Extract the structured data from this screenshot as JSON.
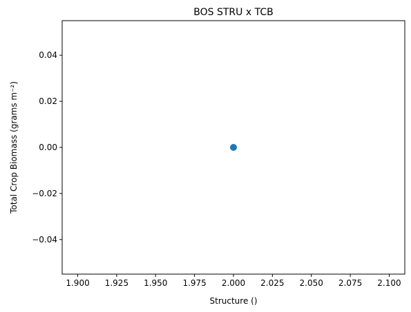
{
  "chart_data": {
    "type": "scatter",
    "title": "BOS STRU x TCB",
    "xlabel": "Structure ()",
    "ylabel": "Total Crop Biomass (grams m⁻²)",
    "xlim": [
      1.89,
      2.11
    ],
    "ylim": [
      -0.055,
      0.055
    ],
    "xticks": [
      1.9,
      1.925,
      1.95,
      1.975,
      2.0,
      2.025,
      2.05,
      2.075,
      2.1
    ],
    "xtick_labels": [
      "1.900",
      "1.925",
      "1.950",
      "1.975",
      "2.000",
      "2.025",
      "2.050",
      "2.075",
      "2.100"
    ],
    "yticks": [
      -0.04,
      -0.02,
      0.0,
      0.02,
      0.04
    ],
    "ytick_labels": [
      "−0.04",
      "−0.02",
      "0.00",
      "0.02",
      "0.04"
    ],
    "grid": false,
    "legend": "none",
    "series": [
      {
        "color": "#1f77b4",
        "x": [
          2.0
        ],
        "y": [
          0.0
        ]
      }
    ]
  }
}
